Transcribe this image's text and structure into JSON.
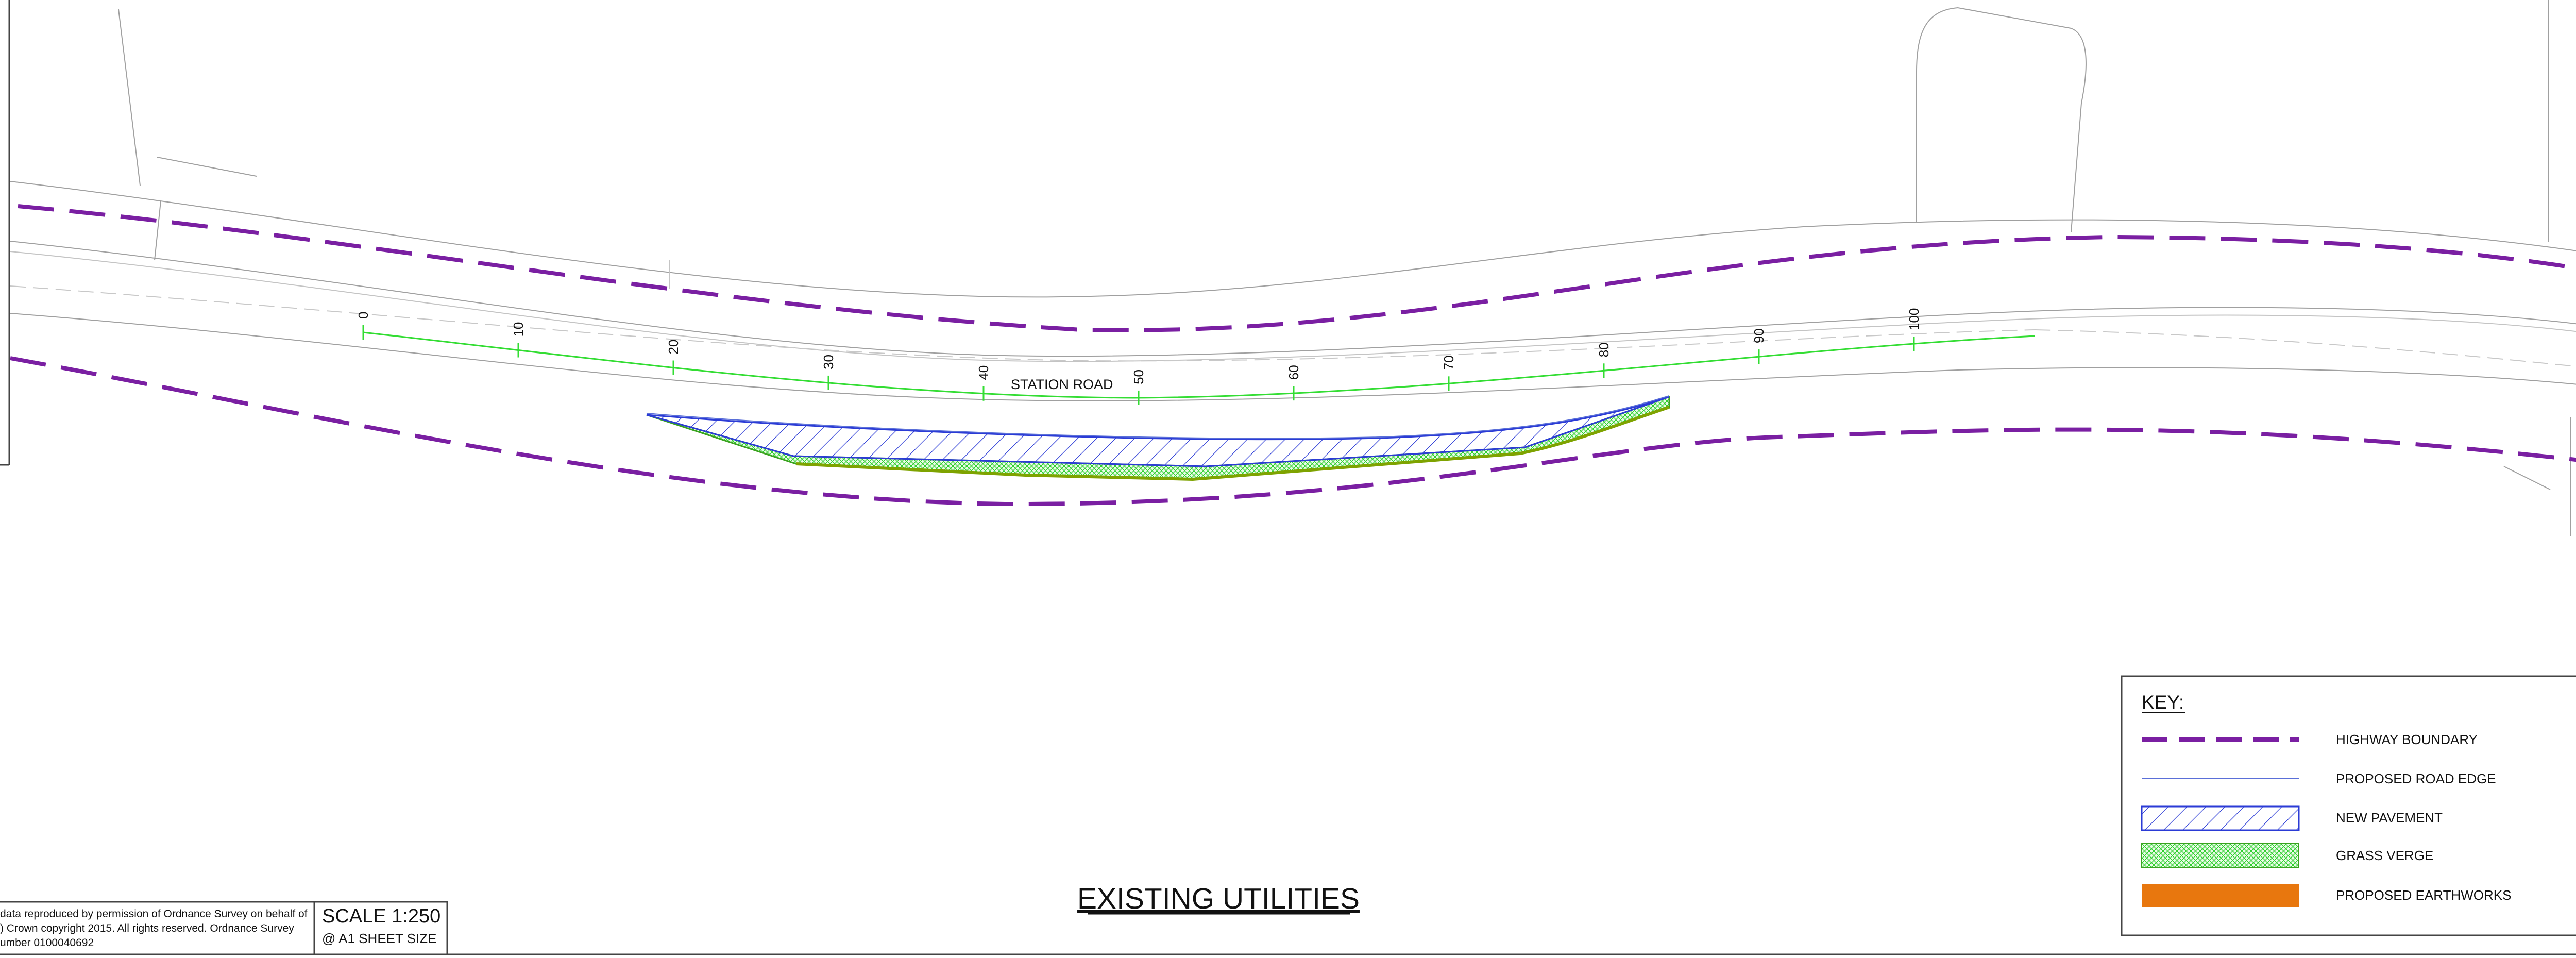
{
  "drawing": {
    "road_name": "STATION ROAD",
    "chainage_labels": [
      "0",
      "10",
      "20",
      "30",
      "40",
      "50",
      "60",
      "70",
      "80",
      "90",
      "100"
    ],
    "title": "EXISTING UTILITIES"
  },
  "key": {
    "heading": "KEY:",
    "items": [
      {
        "label": "HIGHWAY BOUNDARY",
        "icon": "dashed-purple-line-icon",
        "color": "#7a1fa2"
      },
      {
        "label": "PROPOSED ROAD EDGE",
        "icon": "thin-blue-line-icon",
        "color": "#5a6fd8"
      },
      {
        "label": "NEW PAVEMENT",
        "icon": "blue-hatch-icon",
        "color": "#2b3bd6"
      },
      {
        "label": "GRASS VERGE",
        "icon": "green-crosshatch-icon",
        "color": "#33cc33"
      },
      {
        "label": "PROPOSED EARTHWORKS",
        "icon": "orange-fill-icon",
        "color": "#e8770e"
      }
    ]
  },
  "title_block": {
    "copyright_lines": [
      "data reproduced by permission of Ordnance Survey on behalf of",
      ") Crown copyright 2015. All rights reserved. Ordnance Survey",
      "umber 0100040692"
    ],
    "scale": "SCALE 1:250",
    "sheet_size": "@ A1 SHEET SIZE"
  },
  "colors": {
    "highway_boundary": "#7a1fa2",
    "centreline": "#33dd33",
    "pavement_hatch": "#2b3bd6",
    "grass": "#33cc33",
    "earthworks": "#e8770e",
    "linework": "#9a9a9a"
  }
}
